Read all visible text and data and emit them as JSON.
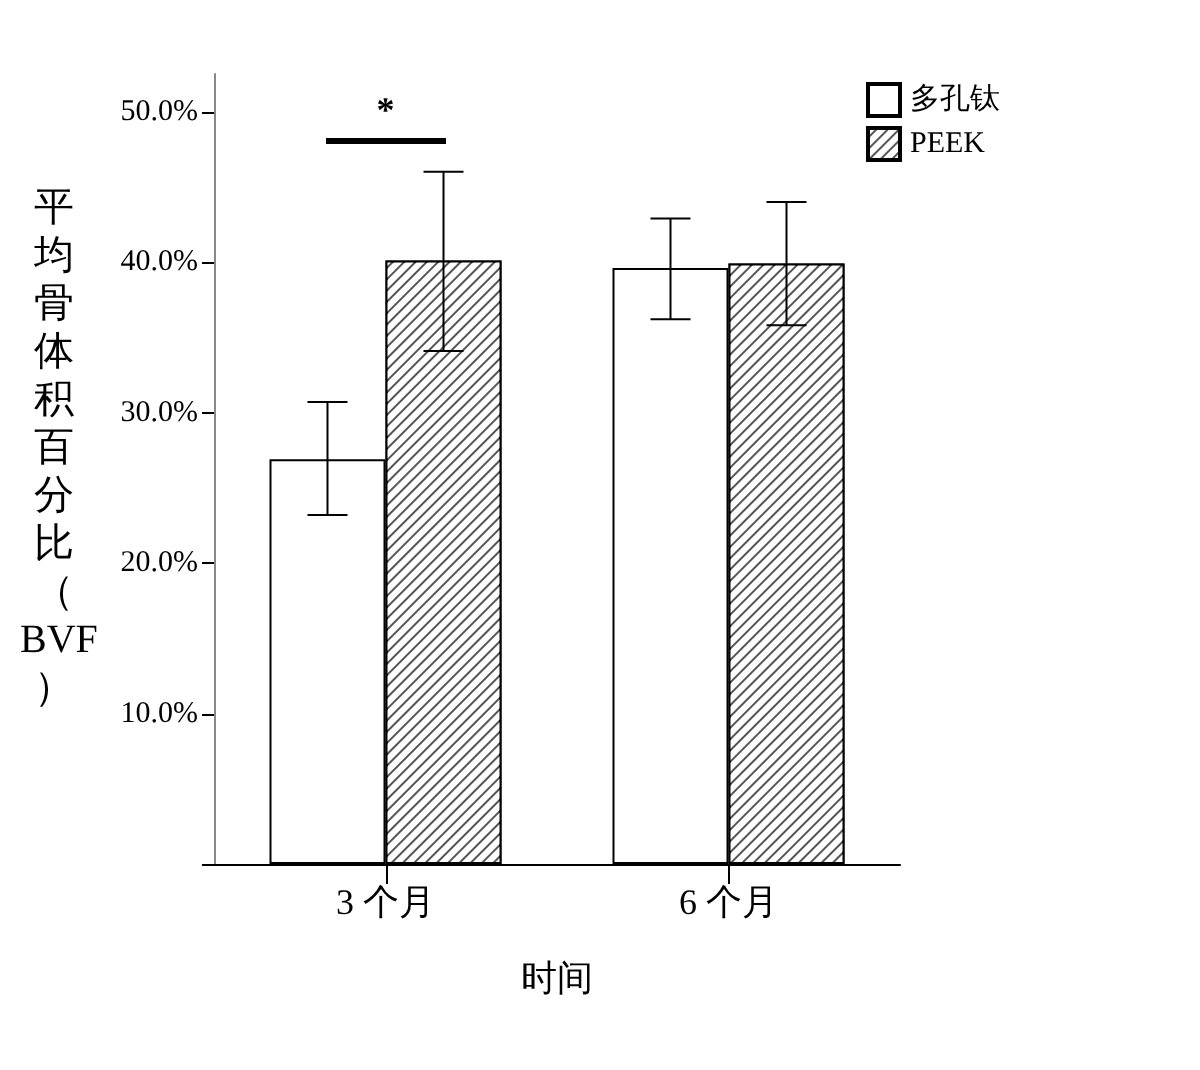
{
  "chart_data": {
    "type": "bar",
    "xlabel": "时间",
    "ylabel": "平均骨体积百分比（BVF）",
    "categories": [
      "3 个月",
      "6 个月"
    ],
    "series": [
      {
        "name": "多孔钛",
        "color": "#ffffff",
        "values": [
          26.9,
          39.6
        ],
        "errors": [
          [
            23.2,
            30.7
          ],
          [
            36.2,
            42.9
          ]
        ]
      },
      {
        "name": "PEEK",
        "color": "#555555",
        "values": [
          40.1,
          39.9
        ],
        "errors": [
          [
            34.1,
            46.0
          ],
          [
            35.8,
            44.0
          ]
        ]
      }
    ],
    "ylim": [
      0,
      52.5
    ],
    "yticks": [
      {
        "value": 0,
        "label": null
      },
      {
        "value": 10,
        "label": "10.0%"
      },
      {
        "value": 20,
        "label": "20.0%"
      },
      {
        "value": 30,
        "label": "30.0%"
      },
      {
        "value": 40,
        "label": "40.0%"
      },
      {
        "value": 50,
        "label": "50.0%"
      }
    ],
    "annotations": [
      "*"
    ],
    "grid": false,
    "legend": "top right"
  }
}
